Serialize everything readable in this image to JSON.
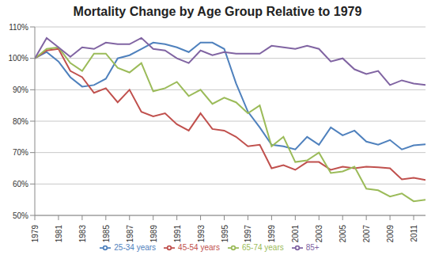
{
  "chart_data": {
    "type": "line",
    "title": "Mortality Change by Age Group Relative to 1979",
    "x": [
      1979,
      1980,
      1981,
      1982,
      1983,
      1984,
      1985,
      1986,
      1987,
      1988,
      1989,
      1990,
      1991,
      1992,
      1993,
      1994,
      1995,
      1996,
      1997,
      1998,
      1999,
      2000,
      2001,
      2002,
      2003,
      2004,
      2005,
      2006,
      2007,
      2008,
      2009,
      2010,
      2011,
      2012
    ],
    "xlim": [
      1979,
      2012
    ],
    "xticks": [
      1979,
      1981,
      1983,
      1985,
      1987,
      1989,
      1991,
      1993,
      1995,
      1997,
      1999,
      2001,
      2003,
      2005,
      2007,
      2009,
      2011
    ],
    "ylim": [
      50,
      110
    ],
    "yticks": [
      {
        "value": 50,
        "label": "50%"
      },
      {
        "value": 60,
        "label": "60%"
      },
      {
        "value": 70,
        "label": "70%"
      },
      {
        "value": 80,
        "label": "80%"
      },
      {
        "value": 90,
        "label": "90%"
      },
      {
        "value": 100,
        "label": "100%"
      },
      {
        "value": 110,
        "label": "110%"
      }
    ],
    "grid": true,
    "legend": "bottom",
    "marker": "none",
    "series": [
      {
        "name": "25-34 years",
        "color": "#4f81bd",
        "values": [
          100,
          102,
          99,
          94,
          91,
          91.5,
          93.5,
          100,
          101,
          103,
          105,
          104.5,
          103.5,
          102,
          105,
          105,
          103,
          92,
          83,
          78,
          72.5,
          72,
          71,
          75,
          72.5,
          78,
          75.5,
          77,
          73.5,
          72.5,
          74,
          71,
          72.3,
          72.6
        ]
      },
      {
        "name": "45-54 years",
        "color": "#c0504d",
        "values": [
          100,
          102.5,
          103,
          96,
          94,
          89,
          90.5,
          86,
          90,
          83,
          81.5,
          82.5,
          79,
          77,
          82.5,
          77.5,
          77,
          75,
          72,
          72.5,
          65,
          66,
          64.5,
          67,
          67,
          64.5,
          65.5,
          65,
          65.5,
          65.3,
          65,
          61.5,
          62,
          61.3
        ]
      },
      {
        "name": "65-74 years",
        "color": "#9bbb59",
        "values": [
          100,
          103,
          103.5,
          98.5,
          96,
          101.5,
          101.5,
          97,
          95.5,
          98.5,
          89.5,
          90.5,
          92.5,
          88,
          90,
          85.5,
          87.5,
          86,
          82.5,
          85,
          72,
          75,
          67,
          67.5,
          70,
          63.5,
          64,
          65.5,
          58.5,
          58,
          56,
          57,
          54.5,
          55
        ]
      },
      {
        "name": "85+",
        "color": "#8064a2",
        "values": [
          100,
          106.5,
          103.5,
          100.5,
          103.5,
          103,
          105,
          104.5,
          104.5,
          106.5,
          103,
          102.5,
          100,
          98.5,
          102.5,
          101,
          102,
          101.5,
          101.5,
          101.5,
          104,
          103.5,
          103,
          104,
          103,
          99,
          100,
          96.5,
          95,
          96,
          91.5,
          93,
          92,
          91.5
        ]
      }
    ]
  }
}
